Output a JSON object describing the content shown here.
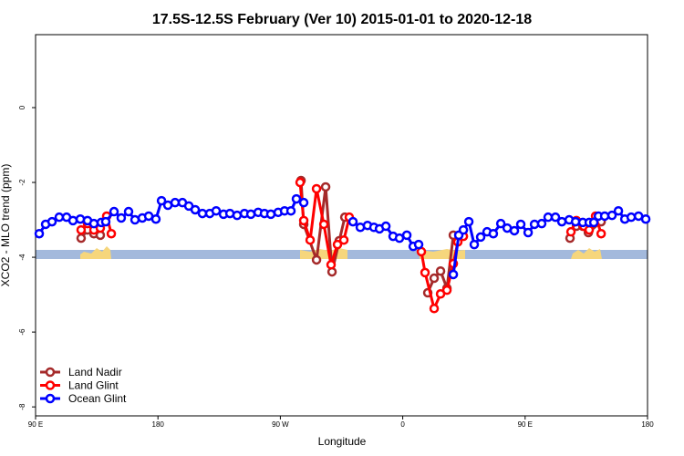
{
  "chart_data": {
    "type": "line",
    "title": "17.5S-12.5S February (Ver 10)   2015-01-01 to 2020-12-18",
    "xlabel": "Longitude",
    "ylabel": "XCO2 - MLO trend (ppm)",
    "xlim": [
      90,
      540
    ],
    "xticks": [
      {
        "value": 90,
        "label": "90 E"
      },
      180,
      {
        "value": 270,
        "label": "90 W"
      },
      {
        "value": 360,
        "label": "0"
      },
      {
        "value": 450,
        "label": "90 E"
      },
      {
        "value": 540,
        "label": "180"
      }
    ],
    "ylim": [
      -8.24,
      1.95
    ],
    "yticks": [
      0,
      -2,
      -4,
      -6,
      -8
    ],
    "legend": "bottom-left",
    "series": [
      {
        "name": "Land Nadir",
        "color": "#a52a2a",
        "x": [
          123.5,
          128.2,
          132.9,
          137.6,
          null,
          285.2,
          287.2,
          296.6,
          303.3,
          308.0,
          313.3,
          317.4,
          null,
          378.4,
          383.1,
          387.8,
          392.5,
          397.2,
          null,
          483.0,
          487.7,
          492.4,
          496.5,
          505.9
        ],
        "values": [
          -3.49,
          -3.27,
          -3.37,
          -3.41,
          null,
          -1.95,
          -3.12,
          -4.07,
          -2.12,
          -4.39,
          -3.56,
          -2.93,
          null,
          -4.95,
          -4.56,
          -4.37,
          -4.83,
          -3.41,
          null,
          -3.49,
          -3.17,
          -3.17,
          -3.34,
          -3.05
        ]
      },
      {
        "name": "Land Glint",
        "color": "#ff0000",
        "x": [
          123.5,
          128.2,
          132.9,
          137.6,
          142.3,
          145.7,
          null,
          284.5,
          287.2,
          291.9,
          296.6,
          302.0,
          307.3,
          312.0,
          316.7,
          320.7,
          null,
          373.7,
          376.4,
          383.1,
          387.8,
          392.5,
          397.2,
          400.5,
          404.6,
          null,
          483.7,
          487.7,
          493.1,
          497.1,
          501.8,
          505.9
        ],
        "values": [
          -3.27,
          -3.1,
          -3.27,
          -3.22,
          -2.9,
          -3.37,
          null,
          -2.0,
          -3.02,
          -3.54,
          -2.17,
          -3.12,
          -4.2,
          -3.66,
          -3.54,
          -2.93,
          null,
          -3.85,
          -4.41,
          -5.37,
          -4.98,
          -4.88,
          -4.17,
          -3.59,
          -3.44,
          null,
          -3.32,
          -3.02,
          -3.17,
          -3.27,
          -2.9,
          -3.37
        ]
      },
      {
        "name": "Ocean Glint",
        "color": "#0000ff",
        "x": [
          92.7,
          97.4,
          102.1,
          107.4,
          112.8,
          117.5,
          122.9,
          128.2,
          132.9,
          138.3,
          141.6,
          147.7,
          153.0,
          158.4,
          163.1,
          168.5,
          173.2,
          178.5,
          182.6,
          187.3,
          192.6,
          198.0,
          202.7,
          207.4,
          212.7,
          218.1,
          222.8,
          228.2,
          232.9,
          238.2,
          243.6,
          248.3,
          253.7,
          258.3,
          263.0,
          268.4,
          273.1,
          277.8,
          281.8,
          287.2,
          null,
          323.4,
          328.8,
          334.1,
          338.8,
          342.9,
          347.6,
          352.9,
          357.6,
          363.0,
          367.7,
          371.7,
          null,
          397.2,
          401.2,
          404.6,
          408.6,
          412.6,
          417.3,
          422.0,
          426.6,
          432.1,
          436.8,
          442.1,
          446.8,
          452.2,
          456.9,
          462.2,
          466.9,
          472.3,
          477.0,
          482.4,
          487.1,
          492.4,
          497.1,
          500.5,
          503.9,
          508.5,
          513.9,
          518.6,
          523.3,
          528.0,
          533.4,
          538.7
        ],
        "values": [
          -3.37,
          -3.12,
          -3.05,
          -2.93,
          -2.93,
          -3.02,
          -2.98,
          -3.02,
          -3.1,
          -3.07,
          -3.05,
          -2.78,
          -2.95,
          -2.78,
          -3.0,
          -2.95,
          -2.9,
          -2.98,
          -2.49,
          -2.61,
          -2.54,
          -2.54,
          -2.63,
          -2.73,
          -2.83,
          -2.83,
          -2.76,
          -2.85,
          -2.83,
          -2.88,
          -2.83,
          -2.85,
          -2.8,
          -2.83,
          -2.85,
          -2.8,
          -2.76,
          -2.76,
          -2.44,
          -2.54,
          null,
          -3.05,
          -3.2,
          -3.15,
          -3.2,
          -3.24,
          -3.17,
          -3.44,
          -3.49,
          -3.41,
          -3.71,
          -3.66,
          null,
          -4.46,
          -3.41,
          -3.27,
          -3.05,
          -3.66,
          -3.46,
          -3.32,
          -3.37,
          -3.1,
          -3.22,
          -3.29,
          -3.12,
          -3.34,
          -3.12,
          -3.1,
          -2.93,
          -2.93,
          -3.05,
          -3.0,
          -3.05,
          -3.07,
          -3.07,
          -3.07,
          -2.9,
          -2.9,
          -2.88,
          -2.76,
          -2.98,
          -2.93,
          -2.9,
          -2.98
        ]
      }
    ]
  }
}
